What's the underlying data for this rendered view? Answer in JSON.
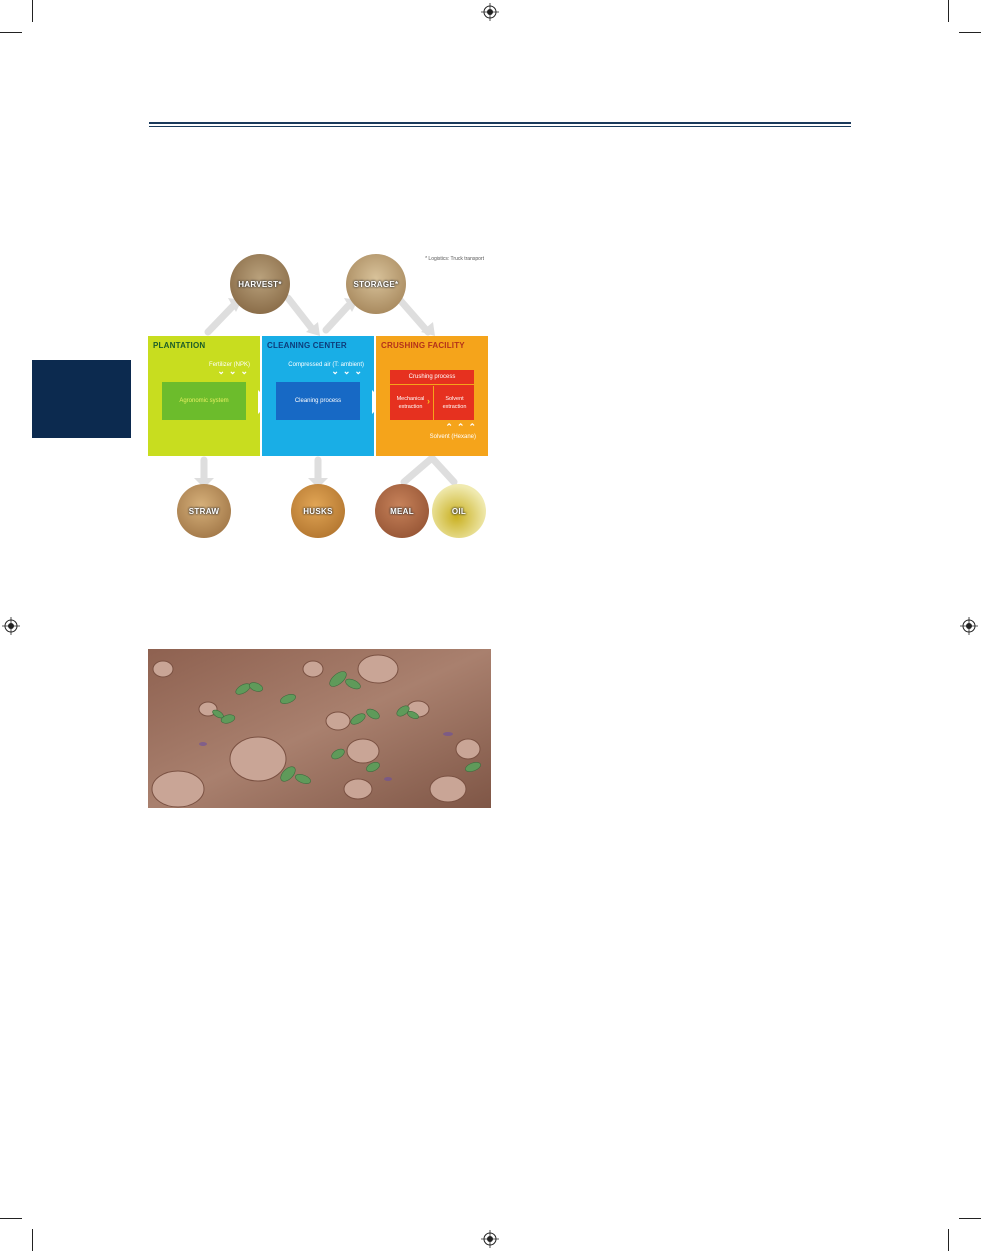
{
  "diagram": {
    "note": "* Logistics: Truck transport",
    "top_circles": [
      {
        "label": "HARVEST*",
        "color": "#9a7a52"
      },
      {
        "label": "STORAGE*",
        "color": "#b89a70"
      }
    ],
    "panels": {
      "plantation": {
        "title": "PLANTATION",
        "input": "Fertilizer (NPK)",
        "process": "Agronomic system"
      },
      "cleaning": {
        "title": "CLEANING CENTER",
        "input": "Compressed air (T: ambient)",
        "process": "Cleaning process"
      },
      "crushing": {
        "title": "CRUSHING FACILITY",
        "process_title": "Crushing process",
        "mechanical": "Mechanical extraction",
        "solvent": "Solvent extraction",
        "input": "Solvent (Hexane)"
      }
    },
    "bottom_circles": [
      {
        "label": "STRAW",
        "color": "#b08a55"
      },
      {
        "label": "HUSKS",
        "color": "#c0873a"
      },
      {
        "label": "MEAL",
        "color": "#a5603a"
      },
      {
        "label": "OIL",
        "color": "#c9b544"
      }
    ]
  }
}
